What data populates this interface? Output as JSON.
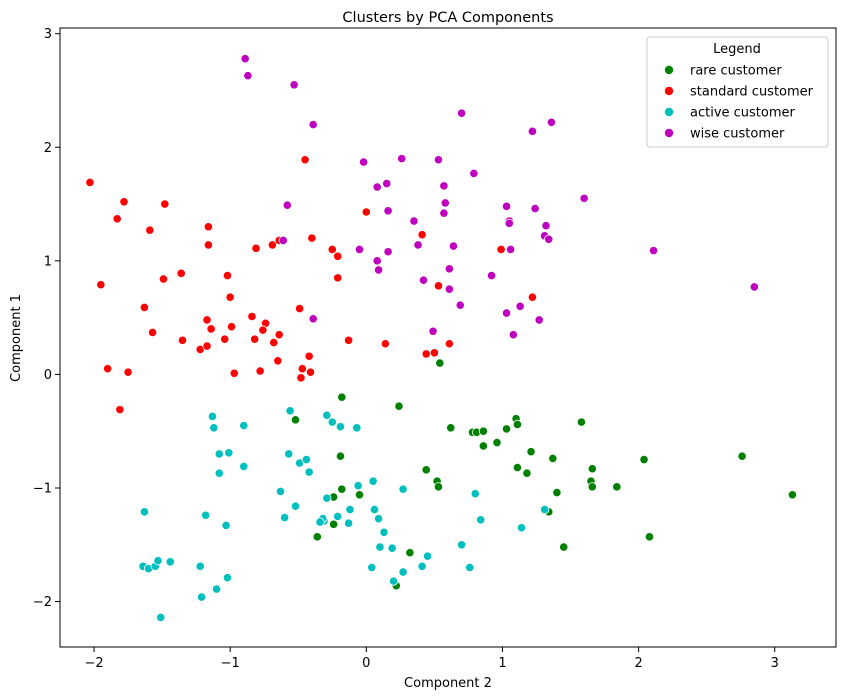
{
  "chart_data": {
    "type": "scatter",
    "title": "Clusters by PCA Components",
    "xlabel": "Component 2",
    "ylabel": "Component 1",
    "xlim": [
      -2.25,
      3.45
    ],
    "ylim": [
      -2.4,
      3.05
    ],
    "xticks": [
      -2,
      -1,
      0,
      1,
      2,
      3
    ],
    "yticks": [
      -2,
      -1,
      0,
      1,
      2,
      3
    ],
    "grid": false,
    "legend": {
      "title": "Legend",
      "placement": "top-right"
    },
    "series": [
      {
        "name": "rare customer",
        "color": "#008000",
        "points": [
          [
            0.54,
            0.1
          ],
          [
            -0.18,
            -0.2
          ],
          [
            0.24,
            -0.28
          ],
          [
            -0.52,
            -0.4
          ],
          [
            0.62,
            -0.47
          ],
          [
            0.78,
            -0.51
          ],
          [
            0.81,
            -0.51
          ],
          [
            0.86,
            -0.5
          ],
          [
            1.1,
            -0.39
          ],
          [
            1.11,
            -0.44
          ],
          [
            1.03,
            -0.48
          ],
          [
            0.96,
            -0.6
          ],
          [
            0.86,
            -0.63
          ],
          [
            1.58,
            -0.42
          ],
          [
            1.21,
            -0.68
          ],
          [
            1.37,
            -0.74
          ],
          [
            1.11,
            -0.82
          ],
          [
            1.18,
            -0.87
          ],
          [
            1.66,
            -0.83
          ],
          [
            -0.19,
            -0.72
          ],
          [
            0.44,
            -0.84
          ],
          [
            0.52,
            -0.94
          ],
          [
            0.53,
            -0.99
          ],
          [
            1.65,
            -0.94
          ],
          [
            1.66,
            -0.99
          ],
          [
            1.84,
            -0.99
          ],
          [
            2.04,
            -0.75
          ],
          [
            2.76,
            -0.72
          ],
          [
            1.4,
            -1.04
          ],
          [
            3.13,
            -1.06
          ],
          [
            -0.05,
            -1.06
          ],
          [
            -0.18,
            -1.01
          ],
          [
            -0.24,
            -1.08
          ],
          [
            1.34,
            -1.21
          ],
          [
            -0.24,
            -1.32
          ],
          [
            -0.36,
            -1.43
          ],
          [
            2.08,
            -1.43
          ],
          [
            1.45,
            -1.52
          ],
          [
            0.32,
            -1.57
          ],
          [
            0.22,
            -1.86
          ]
        ]
      },
      {
        "name": "standard customer",
        "color": "#ff0000",
        "points": [
          [
            -2.03,
            1.69
          ],
          [
            -1.78,
            1.52
          ],
          [
            -1.83,
            1.37
          ],
          [
            -1.48,
            1.5
          ],
          [
            -1.59,
            1.27
          ],
          [
            -1.16,
            1.3
          ],
          [
            -1.16,
            1.14
          ],
          [
            -0.81,
            1.11
          ],
          [
            -0.69,
            1.14
          ],
          [
            -0.64,
            1.18
          ],
          [
            -0.45,
            1.89
          ],
          [
            0.0,
            1.43
          ],
          [
            -0.4,
            1.2
          ],
          [
            -0.25,
            1.1
          ],
          [
            -0.21,
            1.04
          ],
          [
            0.41,
            1.23
          ],
          [
            0.99,
            1.1
          ],
          [
            -1.95,
            0.79
          ],
          [
            -1.49,
            0.84
          ],
          [
            -1.36,
            0.89
          ],
          [
            -1.02,
            0.87
          ],
          [
            -1.63,
            0.59
          ],
          [
            -1.0,
            0.68
          ],
          [
            -1.57,
            0.37
          ],
          [
            -1.17,
            0.48
          ],
          [
            -1.14,
            0.4
          ],
          [
            -0.99,
            0.42
          ],
          [
            -0.84,
            0.51
          ],
          [
            -0.74,
            0.45
          ],
          [
            -0.76,
            0.39
          ],
          [
            -0.64,
            0.35
          ],
          [
            -0.82,
            0.31
          ],
          [
            -1.35,
            0.3
          ],
          [
            -1.22,
            0.22
          ],
          [
            -1.17,
            0.25
          ],
          [
            -1.04,
            0.31
          ],
          [
            -0.68,
            0.28
          ],
          [
            -0.65,
            0.12
          ],
          [
            -0.49,
            0.58
          ],
          [
            -0.21,
            0.85
          ],
          [
            0.53,
            0.78
          ],
          [
            1.22,
            0.68
          ],
          [
            -0.42,
            0.16
          ],
          [
            -0.47,
            0.05
          ],
          [
            -0.41,
            0.02
          ],
          [
            -0.48,
            -0.03
          ],
          [
            -0.97,
            0.01
          ],
          [
            -0.78,
            0.03
          ],
          [
            -1.9,
            0.05
          ],
          [
            -1.75,
            0.02
          ],
          [
            -1.81,
            -0.31
          ],
          [
            -0.13,
            0.3
          ],
          [
            0.14,
            0.27
          ],
          [
            0.44,
            0.18
          ],
          [
            0.5,
            0.19
          ],
          [
            0.61,
            0.27
          ]
        ]
      },
      {
        "name": "active customer",
        "color": "#00bfbf",
        "points": [
          [
            -1.13,
            -0.37
          ],
          [
            -1.12,
            -0.47
          ],
          [
            -0.9,
            -0.45
          ],
          [
            -0.56,
            -0.32
          ],
          [
            -0.29,
            -0.36
          ],
          [
            -0.25,
            -0.42
          ],
          [
            -0.19,
            -0.46
          ],
          [
            -0.07,
            -0.47
          ],
          [
            -1.01,
            -0.69
          ],
          [
            -1.08,
            -0.7
          ],
          [
            -0.57,
            -0.7
          ],
          [
            -0.49,
            -0.78
          ],
          [
            -0.44,
            -0.75
          ],
          [
            -0.42,
            -0.86
          ],
          [
            -0.9,
            -0.81
          ],
          [
            -1.08,
            -0.87
          ],
          [
            -0.63,
            -1.03
          ],
          [
            -0.52,
            -1.16
          ],
          [
            -0.29,
            -1.09
          ],
          [
            -0.31,
            -1.29
          ],
          [
            -0.21,
            -1.25
          ],
          [
            -0.12,
            -1.19
          ],
          [
            -0.06,
            -0.98
          ],
          [
            0.05,
            -0.94
          ],
          [
            0.27,
            -1.01
          ],
          [
            0.8,
            -1.05
          ],
          [
            -0.6,
            -1.26
          ],
          [
            -0.32,
            -1.27
          ],
          [
            -0.34,
            -1.3
          ],
          [
            -0.13,
            -1.31
          ],
          [
            0.06,
            -1.19
          ],
          [
            0.09,
            -1.27
          ],
          [
            0.13,
            -1.39
          ],
          [
            -1.63,
            -1.21
          ],
          [
            -1.18,
            -1.24
          ],
          [
            -1.03,
            -1.33
          ],
          [
            0.84,
            -1.28
          ],
          [
            1.14,
            -1.35
          ],
          [
            1.31,
            -1.19
          ],
          [
            0.1,
            -1.52
          ],
          [
            0.19,
            -1.53
          ],
          [
            0.04,
            -1.7
          ],
          [
            0.2,
            -1.82
          ],
          [
            0.27,
            -1.74
          ],
          [
            0.41,
            -1.69
          ],
          [
            0.45,
            -1.6
          ],
          [
            0.7,
            -1.5
          ],
          [
            0.76,
            -1.7
          ],
          [
            -1.64,
            -1.69
          ],
          [
            -1.6,
            -1.71
          ],
          [
            -1.55,
            -1.69
          ],
          [
            -1.53,
            -1.64
          ],
          [
            -1.44,
            -1.65
          ],
          [
            -1.22,
            -1.69
          ],
          [
            -1.02,
            -1.79
          ],
          [
            -1.1,
            -1.89
          ],
          [
            -1.21,
            -1.96
          ],
          [
            -1.51,
            -2.14
          ]
        ]
      },
      {
        "name": "wise customer",
        "color": "#bf00bf",
        "points": [
          [
            -0.89,
            2.78
          ],
          [
            -0.87,
            2.63
          ],
          [
            -0.53,
            2.55
          ],
          [
            -0.39,
            2.2
          ],
          [
            0.7,
            2.3
          ],
          [
            1.22,
            2.14
          ],
          [
            1.36,
            2.22
          ],
          [
            -0.02,
            1.87
          ],
          [
            0.26,
            1.9
          ],
          [
            0.53,
            1.89
          ],
          [
            0.57,
            1.66
          ],
          [
            0.79,
            1.77
          ],
          [
            0.08,
            1.65
          ],
          [
            0.15,
            1.68
          ],
          [
            0.58,
            1.51
          ],
          [
            0.57,
            1.42
          ],
          [
            -0.58,
            1.49
          ],
          [
            0.16,
            1.44
          ],
          [
            0.35,
            1.35
          ],
          [
            1.03,
            1.48
          ],
          [
            1.24,
            1.46
          ],
          [
            1.6,
            1.55
          ],
          [
            1.05,
            1.35
          ],
          [
            1.05,
            1.33
          ],
          [
            1.32,
            1.31
          ],
          [
            1.31,
            1.22
          ],
          [
            1.34,
            1.19
          ],
          [
            -0.61,
            1.18
          ],
          [
            -0.05,
            1.1
          ],
          [
            0.16,
            1.08
          ],
          [
            0.38,
            1.14
          ],
          [
            0.64,
            1.13
          ],
          [
            1.06,
            1.1
          ],
          [
            2.11,
            1.09
          ],
          [
            0.08,
            1.0
          ],
          [
            0.09,
            0.92
          ],
          [
            0.61,
            0.93
          ],
          [
            0.92,
            0.87
          ],
          [
            0.42,
            0.83
          ],
          [
            0.61,
            0.75
          ],
          [
            1.13,
            0.6
          ],
          [
            1.03,
            0.54
          ],
          [
            0.69,
            0.61
          ],
          [
            1.27,
            0.48
          ],
          [
            2.85,
            0.77
          ],
          [
            -0.39,
            0.49
          ],
          [
            0.49,
            0.38
          ],
          [
            1.08,
            0.35
          ]
        ]
      }
    ]
  }
}
